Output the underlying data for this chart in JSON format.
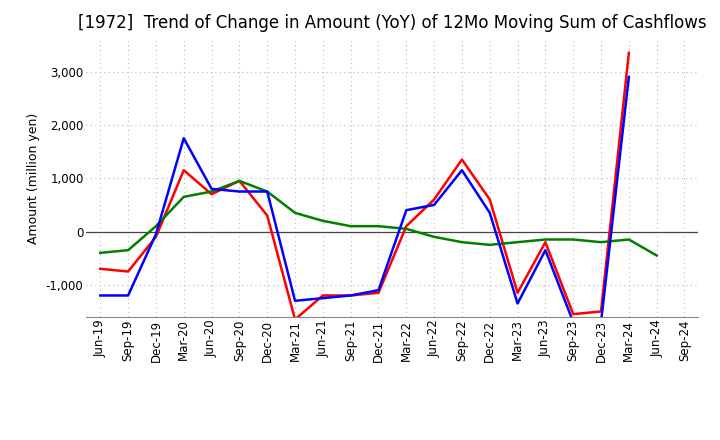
{
  "title": "[1972]  Trend of Change in Amount (YoY) of 12Mo Moving Sum of Cashflows",
  "ylabel": "Amount (million yen)",
  "x_labels": [
    "Jun-19",
    "Sep-19",
    "Dec-19",
    "Mar-20",
    "Jun-20",
    "Sep-20",
    "Dec-20",
    "Mar-21",
    "Jun-21",
    "Sep-21",
    "Dec-21",
    "Mar-22",
    "Jun-22",
    "Sep-22",
    "Dec-22",
    "Mar-23",
    "Jun-23",
    "Sep-23",
    "Dec-23",
    "Mar-24",
    "Jun-24",
    "Sep-24"
  ],
  "operating_cashflow": [
    -700,
    -750,
    -100,
    1150,
    700,
    950,
    300,
    -1650,
    -1200,
    -1200,
    -1150,
    100,
    600,
    1350,
    600,
    -1150,
    -200,
    -1550,
    -1500,
    3350,
    null,
    null
  ],
  "investing_cashflow": [
    -400,
    -350,
    100,
    650,
    750,
    950,
    750,
    350,
    200,
    100,
    100,
    50,
    -100,
    -200,
    -250,
    -200,
    -150,
    -150,
    -200,
    -150,
    -450,
    null
  ],
  "free_cashflow": [
    -1200,
    -1200,
    -50,
    1750,
    800,
    750,
    750,
    -1300,
    -1250,
    -1200,
    -1100,
    400,
    500,
    1150,
    350,
    -1350,
    -350,
    -1700,
    -1700,
    2900,
    null,
    null
  ],
  "operating_color": "#ff0000",
  "investing_color": "#008000",
  "free_color": "#0000ff",
  "ylim": [
    -1600,
    3600
  ],
  "yticks": [
    -1000,
    0,
    1000,
    2000,
    3000
  ],
  "background_color": "#ffffff",
  "grid_color": "#bbbbbb",
  "line_width": 1.8,
  "title_fontsize": 12,
  "tick_fontsize": 8.5
}
